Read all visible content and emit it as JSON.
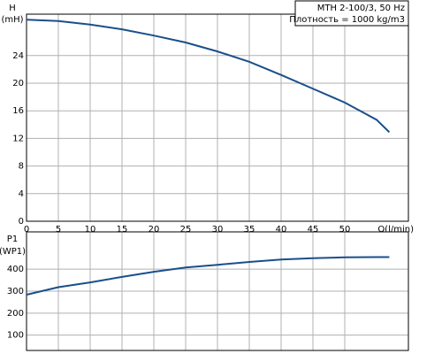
{
  "chart_data": [
    {
      "type": "line",
      "y_label": "H",
      "y_unit": "(mH)",
      "x_label": "Q(l/min)",
      "legend_title": "MTH 2-100/3, 50 Hz",
      "legend_note": "Плотность = 1000 kg/m3",
      "xlim": [
        0,
        60
      ],
      "xticks": [
        0,
        5,
        10,
        15,
        20,
        25,
        30,
        35,
        40,
        45,
        50
      ],
      "ylim": [
        0,
        30
      ],
      "yticks": [
        0,
        4,
        8,
        12,
        16,
        20,
        24
      ],
      "grid": true,
      "series": [
        {
          "name": "H",
          "color": "#1a4f8a",
          "x": [
            0,
            5,
            10,
            15,
            20,
            25,
            30,
            35,
            40,
            45,
            50,
            55,
            57
          ],
          "values": [
            29.2,
            29,
            28.5,
            27.8,
            26.9,
            25.9,
            24.6,
            23.1,
            21.2,
            19.2,
            17.2,
            14.7,
            12.9
          ]
        }
      ]
    },
    {
      "type": "line",
      "y_label": "P1",
      "y_unit": "(WP1)",
      "xlim": [
        0,
        60
      ],
      "xticks": [
        0,
        5,
        10,
        15,
        20,
        25,
        30,
        35,
        40,
        45,
        50
      ],
      "ylim": [
        30,
        570
      ],
      "yticks": [
        100,
        200,
        300,
        400
      ],
      "grid": true,
      "series": [
        {
          "name": "P1",
          "color": "#1a4f8a",
          "x": [
            0,
            5,
            10,
            15,
            20,
            25,
            30,
            35,
            40,
            45,
            50,
            55,
            57
          ],
          "values": [
            284,
            318,
            340,
            365,
            388,
            408,
            420,
            433,
            444,
            450,
            454,
            455,
            455
          ]
        }
      ]
    }
  ]
}
